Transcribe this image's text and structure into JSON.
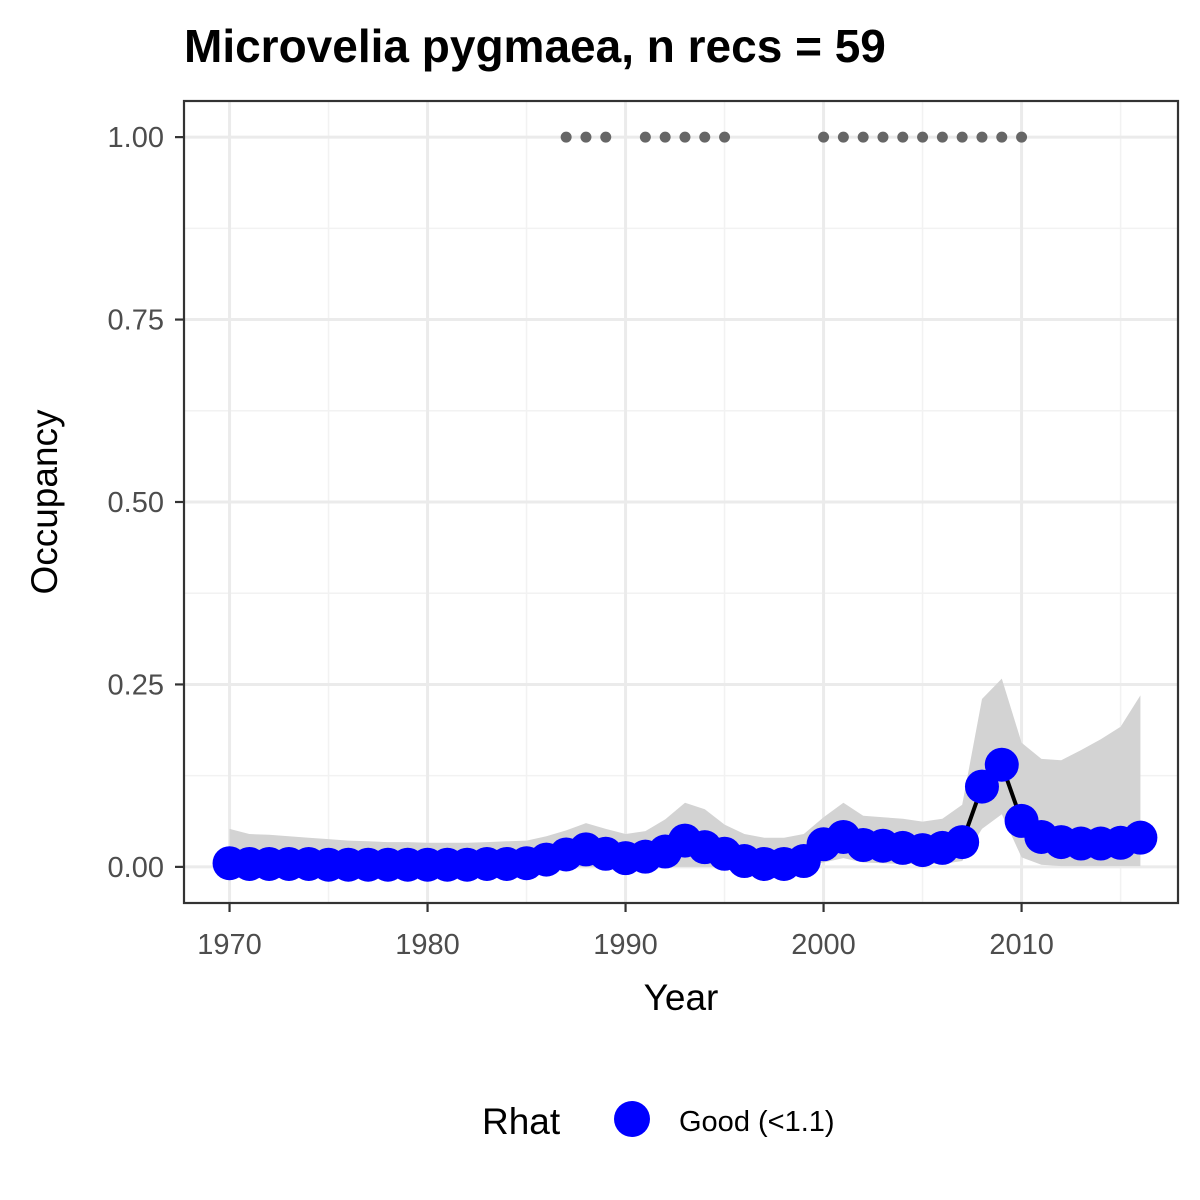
{
  "chart_data": {
    "type": "line",
    "title": "Microvelia pygmaea, n recs = 59",
    "xlabel": "Year",
    "ylabel": "Occupancy",
    "xlim": [
      1967.7,
      2017.9
    ],
    "ylim": [
      -0.0495,
      1.0495
    ],
    "x_ticks": [
      1970,
      1980,
      1990,
      2000,
      2010
    ],
    "x_tick_labels": [
      "1970",
      "1980",
      "1990",
      "2000",
      "2010"
    ],
    "y_ticks": [
      0,
      0.25,
      0.5,
      0.75,
      1
    ],
    "y_tick_labels": [
      "0.00",
      "0.25",
      "0.50",
      "0.75",
      "1.00"
    ],
    "grid": true,
    "legend": {
      "title": "Rhat",
      "placement": "bottom",
      "entries": [
        {
          "label": "Good (<1.1)",
          "color": "#0000ff"
        }
      ]
    },
    "colors": {
      "point": "#0000ff",
      "line": "#000000",
      "ribbon": "#d3d3d3",
      "records": "#666666"
    },
    "series": [
      {
        "type": "line-points",
        "x": [
          1970,
          1971,
          1972,
          1973,
          1974,
          1975,
          1976,
          1977,
          1978,
          1979,
          1980,
          1981,
          1982,
          1983,
          1984,
          1985,
          1986,
          1987,
          1988,
          1989,
          1990,
          1991,
          1992,
          1993,
          1994,
          1995,
          1996,
          1997,
          1998,
          1999,
          2000,
          2001,
          2002,
          2003,
          2004,
          2005,
          2006,
          2007,
          2008,
          2009,
          2010,
          2011,
          2012,
          2013,
          2014,
          2015,
          2016
        ],
        "y": [
          0.005,
          0.004,
          0.004,
          0.004,
          0.004,
          0.003,
          0.003,
          0.003,
          0.003,
          0.003,
          0.003,
          0.003,
          0.003,
          0.004,
          0.004,
          0.005,
          0.01,
          0.017,
          0.024,
          0.018,
          0.012,
          0.014,
          0.021,
          0.036,
          0.027,
          0.018,
          0.008,
          0.004,
          0.004,
          0.008,
          0.031,
          0.041,
          0.03,
          0.029,
          0.026,
          0.023,
          0.026,
          0.034,
          0.11,
          0.14,
          0.063,
          0.041,
          0.034,
          0.032,
          0.032,
          0.033,
          0.04
        ],
        "lower": [
          0,
          0,
          0,
          0,
          0,
          0,
          0,
          0,
          0,
          0,
          0,
          0,
          0,
          0,
          0,
          0,
          0,
          0,
          0,
          0,
          0,
          0,
          0,
          0,
          0,
          0,
          0,
          0,
          0,
          0,
          0.006,
          0.012,
          0.006,
          0.005,
          0.004,
          0.004,
          0.004,
          0.008,
          0.052,
          0.072,
          0.013,
          0.003,
          0.001,
          0.001,
          0.001,
          0.001,
          0.001
        ],
        "upper": [
          0.052,
          0.045,
          0.044,
          0.042,
          0.04,
          0.038,
          0.036,
          0.035,
          0.034,
          0.034,
          0.033,
          0.033,
          0.033,
          0.034,
          0.035,
          0.036,
          0.042,
          0.05,
          0.06,
          0.052,
          0.045,
          0.049,
          0.065,
          0.088,
          0.079,
          0.058,
          0.045,
          0.04,
          0.04,
          0.045,
          0.068,
          0.088,
          0.07,
          0.068,
          0.066,
          0.062,
          0.066,
          0.085,
          0.23,
          0.258,
          0.17,
          0.148,
          0.146,
          0.16,
          0.175,
          0.192,
          0.235
        ]
      },
      {
        "type": "record-years",
        "x": [
          1987,
          1988,
          1989,
          1991,
          1992,
          1993,
          1994,
          1995,
          2000,
          2001,
          2002,
          2003,
          2004,
          2005,
          2006,
          2007,
          2008,
          2009,
          2010
        ],
        "y": 1
      }
    ]
  }
}
